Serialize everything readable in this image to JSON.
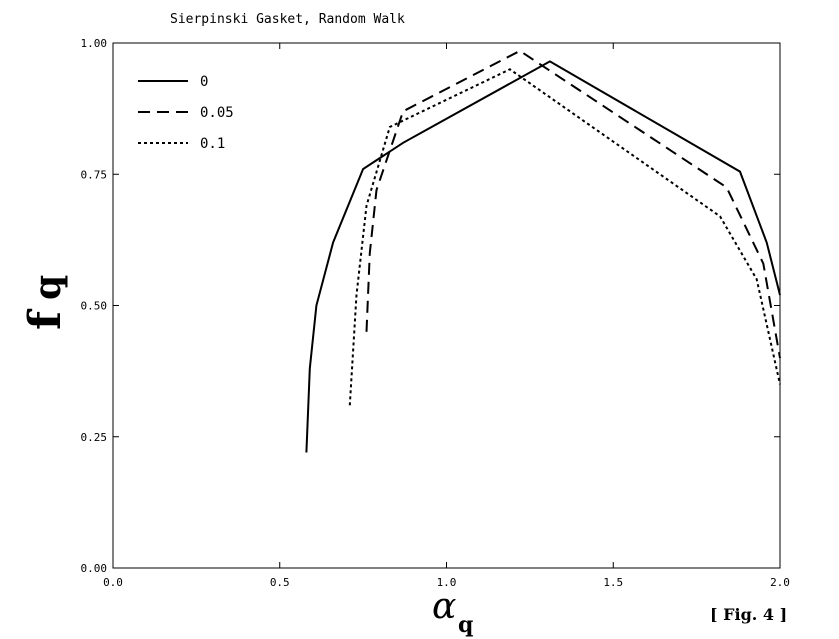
{
  "chart_data": {
    "type": "line",
    "title": "Sierpinski Gasket, Random Walk",
    "ylabel": "f",
    "ylabel_sub": "q",
    "xlabel": "α",
    "xlabel_sub": "q",
    "figure_label": "[ Fig. 4 ]",
    "xlim": [
      0.0,
      2.0
    ],
    "ylim": [
      0.0,
      1.0
    ],
    "xticks": [
      "0.0",
      "0.5",
      "1.0",
      "1.5",
      "2.0"
    ],
    "yticks": [
      "0.00",
      "0.25",
      "0.50",
      "0.75",
      "1.00"
    ],
    "xtick_values": [
      0.0,
      0.5,
      1.0,
      1.5,
      2.0
    ],
    "ytick_values": [
      0.0,
      0.25,
      0.5,
      0.75,
      1.0
    ],
    "legend_position": "top-left",
    "grid": false,
    "series": [
      {
        "name": "0",
        "style": "solid",
        "points": [
          [
            0.58,
            0.22
          ],
          [
            0.59,
            0.38
          ],
          [
            0.61,
            0.5
          ],
          [
            0.66,
            0.62
          ],
          [
            0.75,
            0.76
          ],
          [
            0.87,
            0.81
          ],
          [
            1.31,
            0.965
          ],
          [
            1.88,
            0.755
          ],
          [
            1.96,
            0.62
          ],
          [
            2.0,
            0.52
          ]
        ]
      },
      {
        "name": "0.05",
        "style": "dashed",
        "points": [
          [
            0.76,
            0.45
          ],
          [
            0.77,
            0.6
          ],
          [
            0.79,
            0.72
          ],
          [
            0.87,
            0.87
          ],
          [
            1.22,
            0.985
          ],
          [
            1.84,
            0.725
          ],
          [
            1.95,
            0.58
          ],
          [
            2.0,
            0.4
          ]
        ]
      },
      {
        "name": "0.1",
        "style": "dotted",
        "points": [
          [
            0.71,
            0.31
          ],
          [
            0.73,
            0.52
          ],
          [
            0.76,
            0.69
          ],
          [
            0.83,
            0.84
          ],
          [
            1.19,
            0.95
          ],
          [
            1.82,
            0.67
          ],
          [
            1.93,
            0.55
          ],
          [
            2.0,
            0.35
          ]
        ]
      }
    ]
  }
}
